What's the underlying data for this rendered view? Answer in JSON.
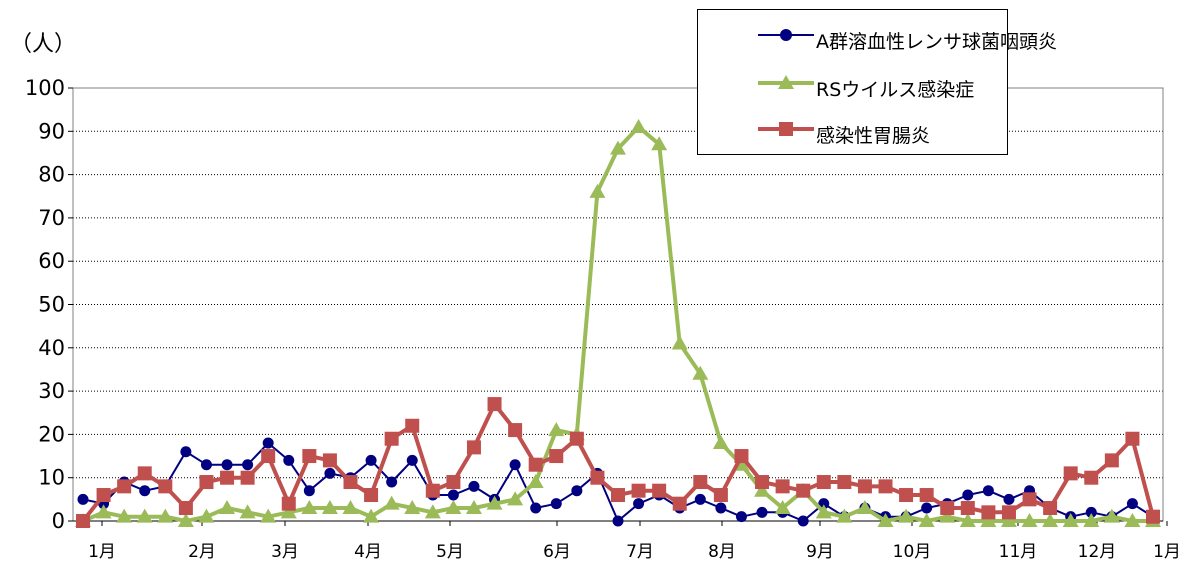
{
  "unit_label": "（人）",
  "chart_data": {
    "type": "line",
    "ylim": [
      0,
      100
    ],
    "yticks": [
      0,
      10,
      20,
      30,
      40,
      50,
      60,
      70,
      80,
      90,
      100
    ],
    "xtick_labels": [
      "1月",
      "2月",
      "3月",
      "4月",
      "5月",
      "6月",
      "7月",
      "8月",
      "9月",
      "10月",
      "11月",
      "12月",
      "1月"
    ],
    "grid": "horizontal-dotted",
    "legend_position": "top-right",
    "series": [
      {
        "name": "A群溶血性レンサ球菌咽頭炎",
        "color": "#000080",
        "marker": "circle",
        "values": [
          5,
          4,
          9,
          7,
          8,
          16,
          13,
          13,
          13,
          18,
          14,
          7,
          11,
          10,
          14,
          9,
          14,
          6,
          6,
          8,
          5,
          13,
          3,
          4,
          7,
          11,
          0,
          4,
          6,
          3,
          5,
          3,
          1,
          2,
          2,
          0,
          4,
          1,
          3,
          1,
          1,
          3,
          4,
          6,
          7,
          5,
          7,
          3,
          1,
          2,
          1,
          4,
          1
        ]
      },
      {
        "name": "RSウイルス感染症",
        "color": "#9BBB59",
        "marker": "triangle",
        "values": [
          0,
          2,
          1,
          1,
          1,
          0,
          1,
          3,
          2,
          1,
          2,
          3,
          3,
          3,
          1,
          4,
          3,
          2,
          3,
          3,
          4,
          5,
          9,
          21,
          20,
          76,
          86,
          91,
          87,
          41,
          34,
          18,
          13,
          7,
          3,
          7,
          2,
          1,
          3,
          0,
          1,
          0,
          1,
          0,
          0,
          0,
          0,
          0,
          0,
          0,
          1,
          0,
          0
        ]
      },
      {
        "name": "感染性胃腸炎",
        "color": "#C0504D",
        "marker": "square",
        "values": [
          0,
          6,
          8,
          11,
          8,
          3,
          9,
          10,
          10,
          15,
          4,
          15,
          14,
          9,
          6,
          19,
          22,
          7,
          9,
          17,
          27,
          21,
          13,
          15,
          19,
          10,
          6,
          7,
          7,
          4,
          9,
          6,
          15,
          9,
          8,
          7,
          9,
          9,
          8,
          8,
          6,
          6,
          3,
          3,
          2,
          2,
          5,
          3,
          11,
          10,
          14,
          19,
          1
        ]
      }
    ]
  }
}
